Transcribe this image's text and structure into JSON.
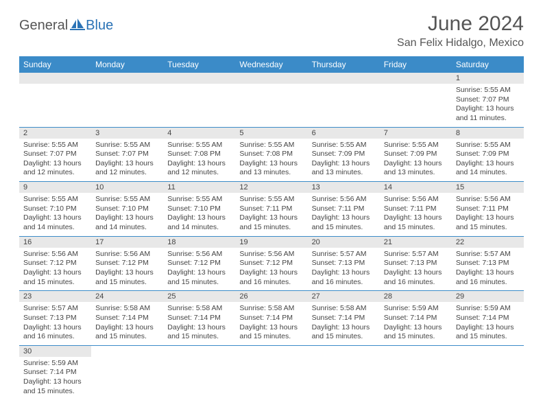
{
  "brand": {
    "general": "General",
    "blue": "Blue"
  },
  "title": "June 2024",
  "location": "San Felix Hidalgo, Mexico",
  "colors": {
    "header_bg": "#3b8bc8",
    "header_text": "#ffffff",
    "daynum_bg": "#e8e8e8",
    "cell_border": "#3b8bc8",
    "body_text": "#444444",
    "title_text": "#555555",
    "logo_blue": "#2a72b5"
  },
  "day_headers": [
    "Sunday",
    "Monday",
    "Tuesday",
    "Wednesday",
    "Thursday",
    "Friday",
    "Saturday"
  ],
  "weeks": [
    [
      null,
      null,
      null,
      null,
      null,
      null,
      {
        "n": "1",
        "sr": "5:55 AM",
        "ss": "7:07 PM",
        "dl": "13 hours and 11 minutes."
      }
    ],
    [
      {
        "n": "2",
        "sr": "5:55 AM",
        "ss": "7:07 PM",
        "dl": "13 hours and 12 minutes."
      },
      {
        "n": "3",
        "sr": "5:55 AM",
        "ss": "7:07 PM",
        "dl": "13 hours and 12 minutes."
      },
      {
        "n": "4",
        "sr": "5:55 AM",
        "ss": "7:08 PM",
        "dl": "13 hours and 12 minutes."
      },
      {
        "n": "5",
        "sr": "5:55 AM",
        "ss": "7:08 PM",
        "dl": "13 hours and 13 minutes."
      },
      {
        "n": "6",
        "sr": "5:55 AM",
        "ss": "7:09 PM",
        "dl": "13 hours and 13 minutes."
      },
      {
        "n": "7",
        "sr": "5:55 AM",
        "ss": "7:09 PM",
        "dl": "13 hours and 13 minutes."
      },
      {
        "n": "8",
        "sr": "5:55 AM",
        "ss": "7:09 PM",
        "dl": "13 hours and 14 minutes."
      }
    ],
    [
      {
        "n": "9",
        "sr": "5:55 AM",
        "ss": "7:10 PM",
        "dl": "13 hours and 14 minutes."
      },
      {
        "n": "10",
        "sr": "5:55 AM",
        "ss": "7:10 PM",
        "dl": "13 hours and 14 minutes."
      },
      {
        "n": "11",
        "sr": "5:55 AM",
        "ss": "7:10 PM",
        "dl": "13 hours and 14 minutes."
      },
      {
        "n": "12",
        "sr": "5:55 AM",
        "ss": "7:11 PM",
        "dl": "13 hours and 15 minutes."
      },
      {
        "n": "13",
        "sr": "5:56 AM",
        "ss": "7:11 PM",
        "dl": "13 hours and 15 minutes."
      },
      {
        "n": "14",
        "sr": "5:56 AM",
        "ss": "7:11 PM",
        "dl": "13 hours and 15 minutes."
      },
      {
        "n": "15",
        "sr": "5:56 AM",
        "ss": "7:11 PM",
        "dl": "13 hours and 15 minutes."
      }
    ],
    [
      {
        "n": "16",
        "sr": "5:56 AM",
        "ss": "7:12 PM",
        "dl": "13 hours and 15 minutes."
      },
      {
        "n": "17",
        "sr": "5:56 AM",
        "ss": "7:12 PM",
        "dl": "13 hours and 15 minutes."
      },
      {
        "n": "18",
        "sr": "5:56 AM",
        "ss": "7:12 PM",
        "dl": "13 hours and 15 minutes."
      },
      {
        "n": "19",
        "sr": "5:56 AM",
        "ss": "7:12 PM",
        "dl": "13 hours and 16 minutes."
      },
      {
        "n": "20",
        "sr": "5:57 AM",
        "ss": "7:13 PM",
        "dl": "13 hours and 16 minutes."
      },
      {
        "n": "21",
        "sr": "5:57 AM",
        "ss": "7:13 PM",
        "dl": "13 hours and 16 minutes."
      },
      {
        "n": "22",
        "sr": "5:57 AM",
        "ss": "7:13 PM",
        "dl": "13 hours and 16 minutes."
      }
    ],
    [
      {
        "n": "23",
        "sr": "5:57 AM",
        "ss": "7:13 PM",
        "dl": "13 hours and 16 minutes."
      },
      {
        "n": "24",
        "sr": "5:58 AM",
        "ss": "7:14 PM",
        "dl": "13 hours and 15 minutes."
      },
      {
        "n": "25",
        "sr": "5:58 AM",
        "ss": "7:14 PM",
        "dl": "13 hours and 15 minutes."
      },
      {
        "n": "26",
        "sr": "5:58 AM",
        "ss": "7:14 PM",
        "dl": "13 hours and 15 minutes."
      },
      {
        "n": "27",
        "sr": "5:58 AM",
        "ss": "7:14 PM",
        "dl": "13 hours and 15 minutes."
      },
      {
        "n": "28",
        "sr": "5:59 AM",
        "ss": "7:14 PM",
        "dl": "13 hours and 15 minutes."
      },
      {
        "n": "29",
        "sr": "5:59 AM",
        "ss": "7:14 PM",
        "dl": "13 hours and 15 minutes."
      }
    ],
    [
      {
        "n": "30",
        "sr": "5:59 AM",
        "ss": "7:14 PM",
        "dl": "13 hours and 15 minutes."
      },
      null,
      null,
      null,
      null,
      null,
      null
    ]
  ],
  "labels": {
    "sunrise": "Sunrise: ",
    "sunset": "Sunset: ",
    "daylight": "Daylight: "
  }
}
